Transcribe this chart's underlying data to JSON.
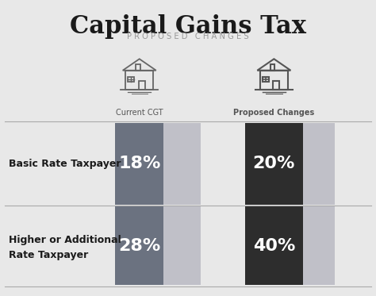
{
  "title": "Capital Gains Tax",
  "subtitle": "PROPOSED CHANGES",
  "bg_color": "#e8e8e8",
  "col1_label": "Current CGT",
  "col2_label": "Proposed Changes",
  "rows": [
    {
      "label_line1": "Basic Rate Taxpayer",
      "label_line2": "",
      "current_val": "18%",
      "proposed_val": "20%",
      "current_color": "#6b7280",
      "proposed_color": "#2d2d2d"
    },
    {
      "label_line1": "Higher or Additional",
      "label_line2": "Rate Taxpayer",
      "current_val": "28%",
      "proposed_val": "40%",
      "current_color": "#6b7280",
      "proposed_color": "#2d2d2d"
    }
  ],
  "label_color": "#1a1a1a",
  "light_box_color": "#c0c0c8",
  "divider_color": "#aaaaaa",
  "title_color": "#1a1a1a",
  "subtitle_color": "#999999",
  "col_label_color": "#555555"
}
